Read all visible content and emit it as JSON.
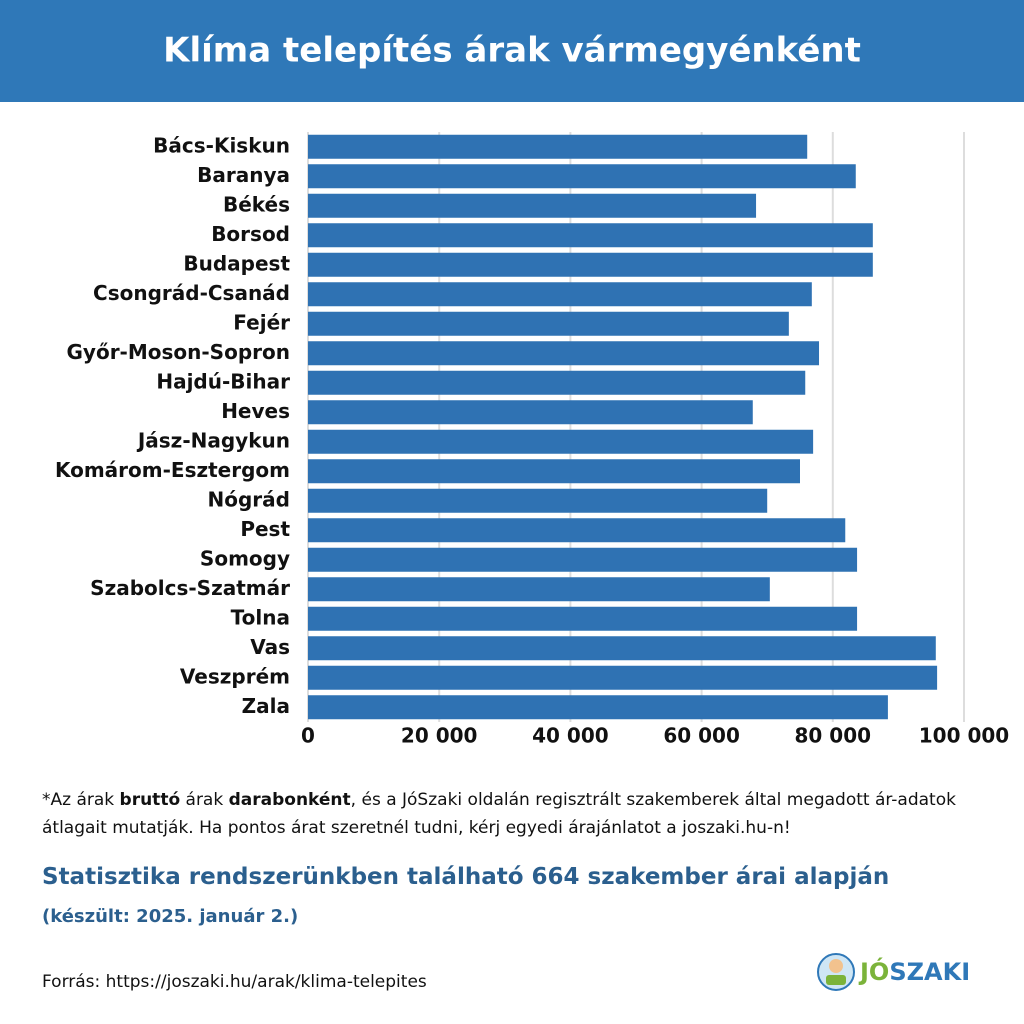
{
  "chart_data": {
    "type": "barh",
    "title": "Klíma telepítés árak vármegyénként",
    "categories": [
      "Bács-Kiskun",
      "Baranya",
      "Békés",
      "Borsod",
      "Budapest",
      "Csongrád-Csanád",
      "Fejér",
      "Győr-Moson-Sopron",
      "Hajdú-Bihar",
      "Heves",
      "Jász-Nagykun",
      "Komárom-Esztergom",
      "Nógrád",
      "Pest",
      "Somogy",
      "Szabolcs-Szatmár",
      "Tolna",
      "Vas",
      "Veszprém",
      "Zala"
    ],
    "values": [
      76100,
      83500,
      68300,
      86100,
      86100,
      76800,
      73300,
      77900,
      75800,
      67800,
      77000,
      75000,
      70000,
      81900,
      83700,
      70400,
      83700,
      95700,
      95900,
      88400
    ],
    "color": "#2f72b3",
    "xlim": [
      0,
      100000
    ],
    "xticks": [
      0,
      {
        "value": 20000,
        "label": "20 000"
      },
      {
        "value": 40000,
        "label": "40 000"
      },
      {
        "value": 60000,
        "label": "60 000"
      },
      {
        "value": 80000,
        "label": "80 000"
      },
      {
        "value": 100000,
        "label": "100 000"
      }
    ],
    "grid": true
  },
  "footnote": [
    "*Az árak ",
    "bruttó",
    " árak ",
    "darabonként",
    ", és a JóSzaki oldalán regisztrált szakemberek által megadott ár-adatok átlagait mutatják. Ha pontos árat szeretnél tudni, kérj egyedi árajánlatot a joszaki.hu-n!"
  ],
  "statistic": "Statisztika rendszerünkben található 664 szakember árai alapján",
  "date_note": "(készült: 2025. január 2.)",
  "source": "Forrás: https://joszaki.hu/arak/klima-telepites",
  "logo": [
    "JÓ",
    "SZAKI"
  ]
}
